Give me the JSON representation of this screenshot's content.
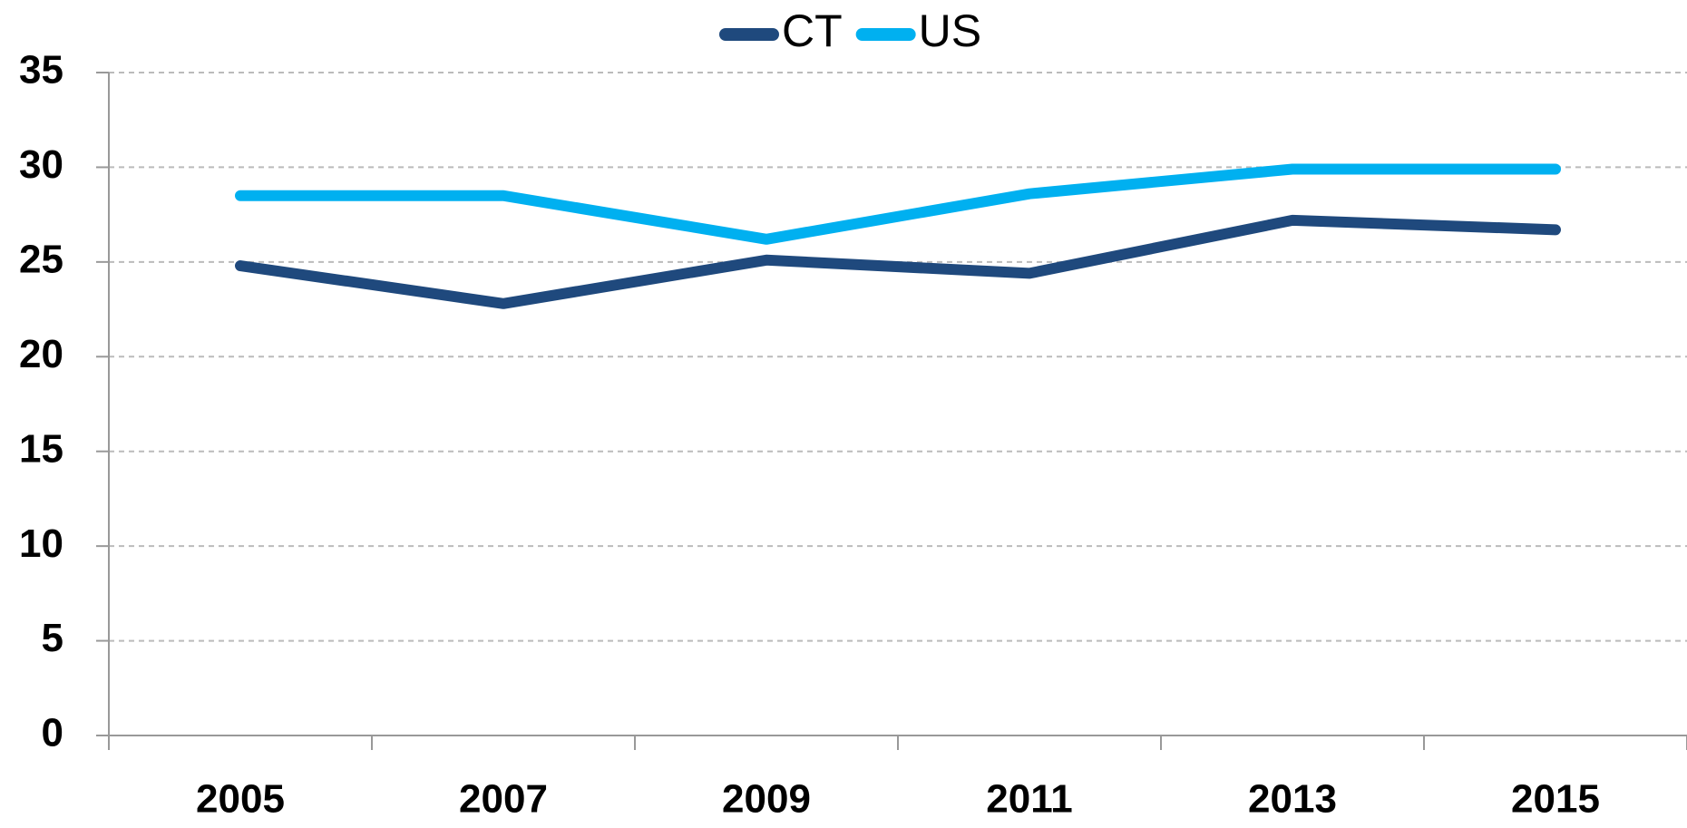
{
  "chart_data": {
    "type": "line",
    "categories": [
      "2005",
      "2007",
      "2009",
      "2011",
      "2013",
      "2015"
    ],
    "series": [
      {
        "name": "CT",
        "color": "#1f497d",
        "values": [
          24.8,
          22.8,
          25.1,
          24.4,
          27.2,
          26.7
        ]
      },
      {
        "name": "US",
        "color": "#00b0f0",
        "values": [
          28.5,
          28.5,
          26.2,
          28.6,
          29.9,
          29.9
        ]
      }
    ],
    "ylim": [
      0,
      35
    ],
    "yticks": [
      0,
      5,
      10,
      15,
      20,
      25,
      30,
      35
    ],
    "grid": true,
    "legend": "top"
  }
}
